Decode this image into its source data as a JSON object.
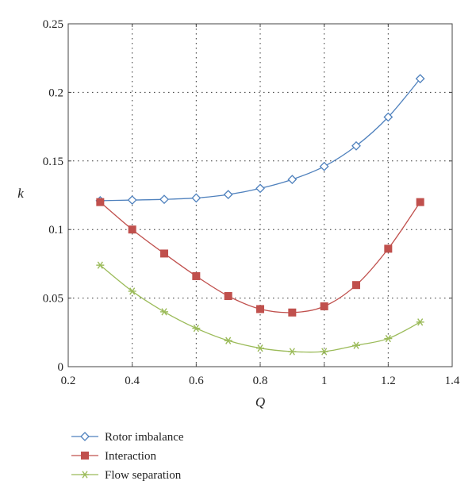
{
  "chart_data": {
    "type": "line",
    "title": "",
    "xlabel": "Q",
    "ylabel": "k",
    "xlim": [
      0.2,
      1.4
    ],
    "ylim": [
      0,
      0.25
    ],
    "x_ticks": [
      0.2,
      0.4,
      0.6,
      0.8,
      1.0,
      1.2,
      1.4
    ],
    "x_tick_labels": [
      "0.2",
      "0.4",
      "0.6",
      "0.8",
      "1",
      "1.2",
      "1.4"
    ],
    "y_ticks": [
      0,
      0.05,
      0.1,
      0.15,
      0.2,
      0.25
    ],
    "y_tick_labels": [
      "0",
      "0.05",
      "0.1",
      "0.15",
      "0.2",
      "0.25"
    ],
    "grid": true,
    "legend_position": "bottom-left outside",
    "x": [
      0.3,
      0.4,
      0.5,
      0.6,
      0.7,
      0.8,
      0.9,
      1.0,
      1.1,
      1.2,
      1.3
    ],
    "series": [
      {
        "name": "Rotor imbalance",
        "color": "#4f81bd",
        "marker": "diamond-open",
        "values": [
          0.121,
          0.1215,
          0.122,
          0.123,
          0.1255,
          0.13,
          0.1365,
          0.146,
          0.161,
          0.182,
          0.21
        ]
      },
      {
        "name": "Interaction",
        "color": "#c0504d",
        "marker": "square-filled",
        "values": [
          0.12,
          0.1,
          0.0825,
          0.066,
          0.0515,
          0.042,
          0.0395,
          0.044,
          0.0595,
          0.086,
          0.12
        ]
      },
      {
        "name": "Flow separation",
        "color": "#9bbb59",
        "marker": "star",
        "values": [
          0.074,
          0.055,
          0.04,
          0.028,
          0.019,
          0.0135,
          0.011,
          0.011,
          0.0155,
          0.0205,
          0.0325
        ]
      }
    ]
  }
}
